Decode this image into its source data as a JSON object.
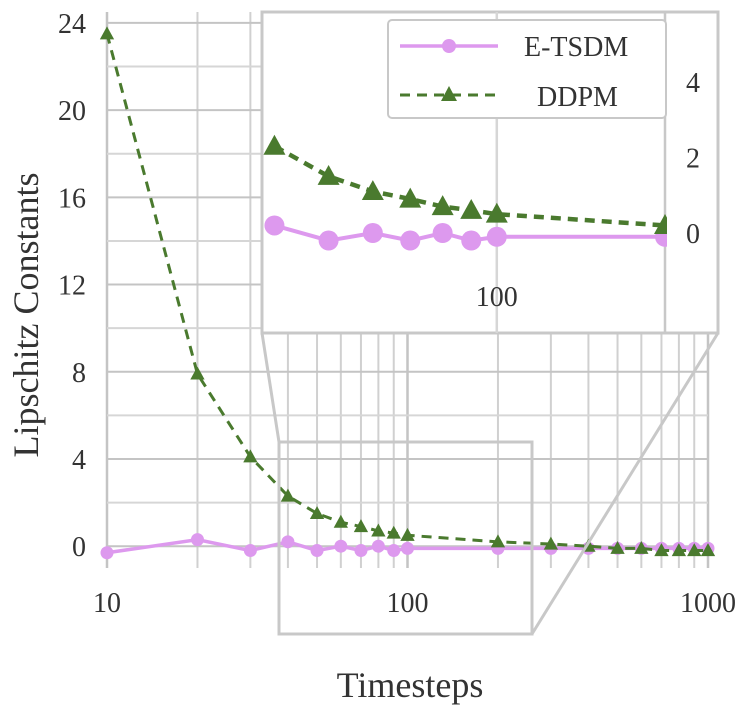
{
  "chart_data": {
    "type": "line",
    "xlabel": "Timesteps",
    "ylabel": "Lipschitz Constants",
    "x_scale": "log",
    "xlim": [
      10,
      1000
    ],
    "ylim": [
      -1,
      24.5
    ],
    "x_ticks": [
      10,
      100,
      1000
    ],
    "x_tick_labels": [
      "10",
      "100",
      "1000"
    ],
    "y_ticks": [
      0,
      4,
      8,
      12,
      16,
      20,
      24
    ],
    "y_tick_labels": [
      "0",
      "4",
      "8",
      "12",
      "16",
      "20",
      "24"
    ],
    "grid": true,
    "legend_position": "top-right",
    "series": [
      {
        "name": "E-TSDM",
        "color": "#dd99ee",
        "marker": "circle",
        "line_style": "solid",
        "x": [
          10,
          20,
          30,
          40,
          50,
          60,
          70,
          80,
          90,
          100,
          200,
          300,
          400,
          500,
          600,
          700,
          800,
          900,
          1000
        ],
        "y": [
          -0.3,
          0.3,
          -0.2,
          0.2,
          -0.2,
          0.0,
          -0.2,
          0.0,
          -0.2,
          -0.1,
          -0.1,
          -0.1,
          -0.1,
          -0.1,
          -0.1,
          -0.1,
          -0.1,
          -0.1,
          -0.1
        ]
      },
      {
        "name": "DDPM",
        "color": "#4a7a2e",
        "marker": "triangle",
        "line_style": "dashed",
        "x": [
          10,
          20,
          30,
          40,
          50,
          60,
          70,
          80,
          90,
          100,
          200,
          300,
          400,
          500,
          600,
          700,
          800,
          900,
          1000
        ],
        "y": [
          23.5,
          7.9,
          4.1,
          2.3,
          1.5,
          1.1,
          0.9,
          0.7,
          0.6,
          0.5,
          0.2,
          0.1,
          0.0,
          -0.1,
          -0.1,
          -0.2,
          -0.2,
          -0.2,
          -0.2
        ]
      }
    ],
    "inset": {
      "xlim": [
        38,
        200
      ],
      "ylim": [
        -0.5,
        5.5
      ],
      "x_ticks": [
        100
      ],
      "x_tick_labels": [
        "100"
      ],
      "y_ticks": [
        0,
        2,
        4
      ],
      "y_tick_labels": [
        "0",
        "2",
        "4"
      ],
      "series": [
        {
          "name": "E-TSDM",
          "x": [
            40,
            50,
            60,
            70,
            80,
            90,
            100,
            200
          ],
          "y": [
            0.2,
            -0.2,
            0.0,
            -0.2,
            0.0,
            -0.2,
            -0.1,
            -0.1
          ]
        },
        {
          "name": "DDPM",
          "x": [
            40,
            50,
            60,
            70,
            80,
            90,
            100,
            200
          ],
          "y": [
            2.3,
            1.5,
            1.1,
            0.9,
            0.7,
            0.6,
            0.5,
            0.2
          ]
        }
      ]
    }
  }
}
